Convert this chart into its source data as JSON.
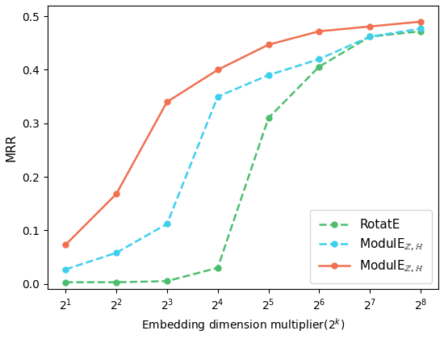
{
  "x_labels": [
    "$2^1$",
    "$2^2$",
    "$2^3$",
    "$2^4$",
    "$2^5$",
    "$2^6$",
    "$2^7$",
    "$2^8$"
  ],
  "x_vals": [
    1,
    2,
    3,
    4,
    5,
    6,
    7,
    8
  ],
  "rotate_e": [
    0.003,
    0.003,
    0.005,
    0.03,
    0.31,
    0.406,
    0.462,
    0.472
  ],
  "module_z_III": [
    0.027,
    0.058,
    0.112,
    0.35,
    0.39,
    0.42,
    0.462,
    0.477
  ],
  "module_z_H": [
    0.073,
    0.168,
    0.34,
    0.4,
    0.447,
    0.472,
    0.481,
    0.49
  ],
  "rotate_color": "#4dbe6e",
  "module_z_III_color": "#3ecfef",
  "module_z_H_color": "#f07050",
  "ylabel": "MRR",
  "xlabel": "Embedding dimension multiplier($2^k$)",
  "ylim": [
    -0.01,
    0.52
  ],
  "yticks": [
    0.0,
    0.1,
    0.2,
    0.3,
    0.4,
    0.5
  ]
}
